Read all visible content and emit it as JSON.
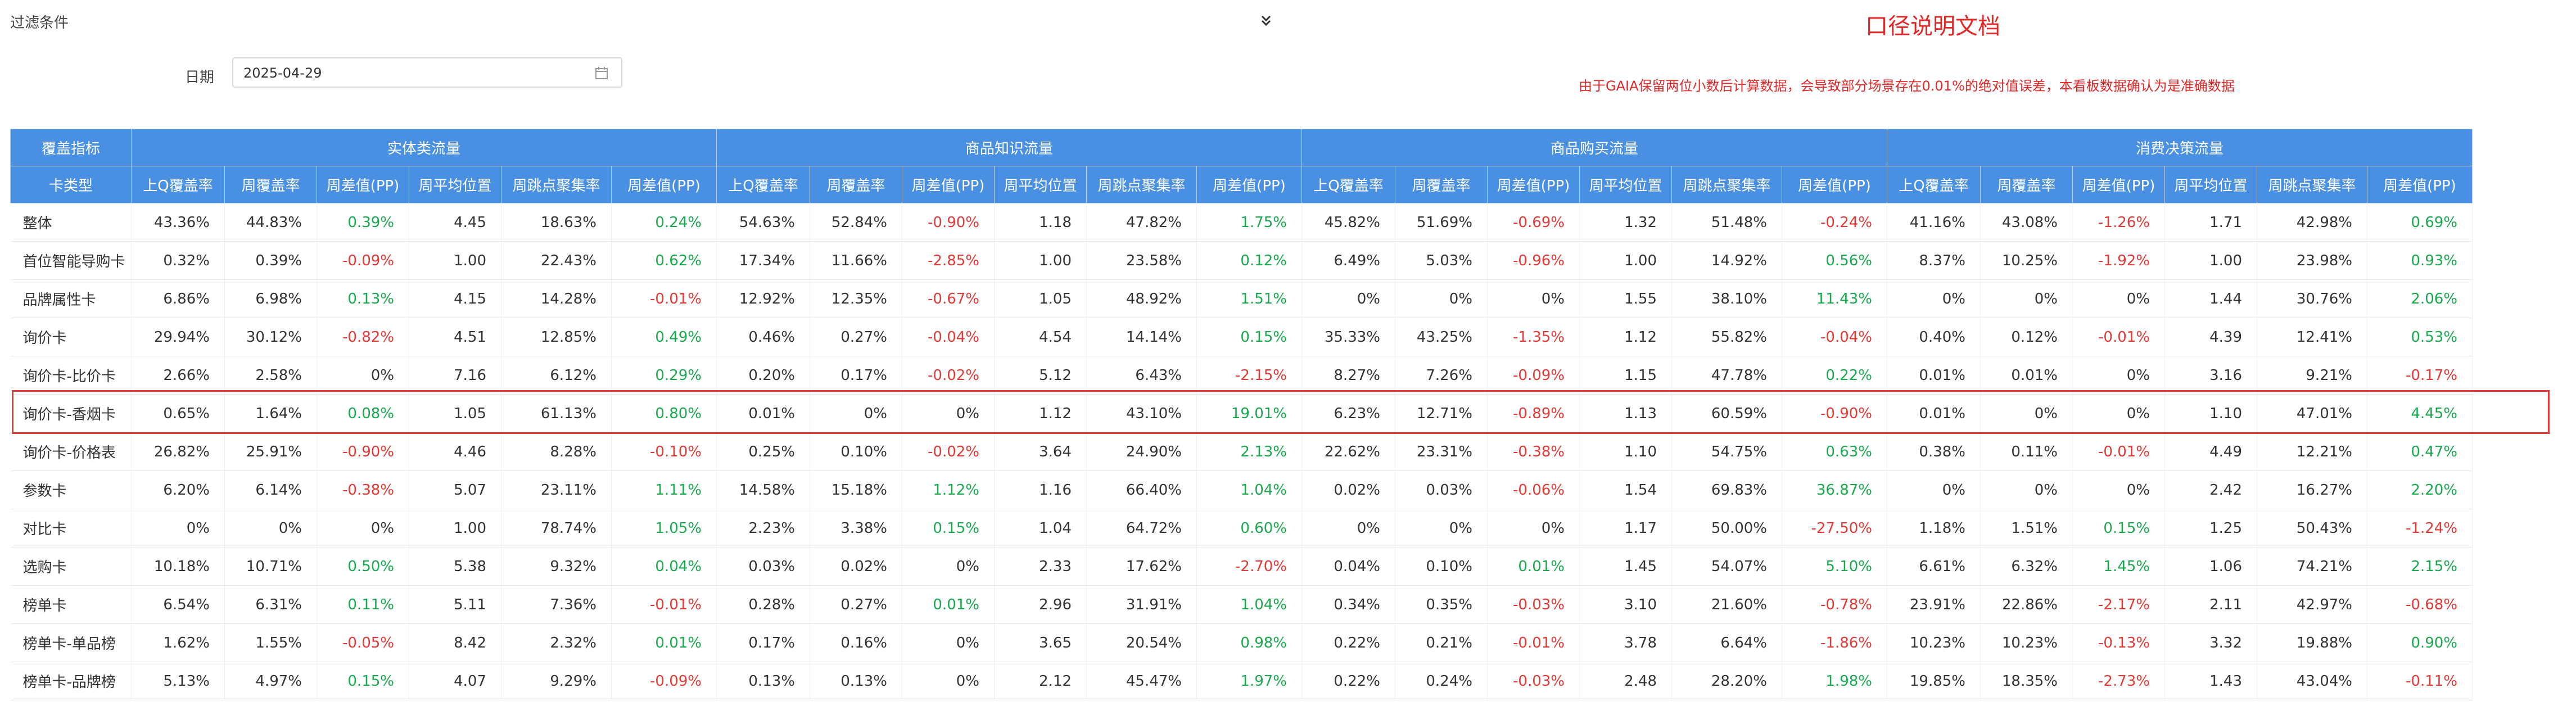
{
  "filter": {
    "title": "过滤条件",
    "date_label": "日期",
    "date_value": "2025-04-29",
    "doc_link": "口径说明文档",
    "notice": "由于GAIA保留两位小数后计算数据，会导致部分场景存在0.01%的绝对值误差，本看板数据确认为是准确数据"
  },
  "colors": {
    "header_bg": "#4a90e2",
    "positive": "#1aaa4e",
    "negative": "#e53935",
    "highlight": "#e53935"
  },
  "icons": {
    "collapse": "double-chevron-down-icon",
    "calendar": "calendar-icon"
  },
  "table": {
    "corner_top": "覆盖指标",
    "corner_bottom": "卡类型",
    "groups": [
      "实体类流量",
      "商品知识流量",
      "商品购买流量",
      "消费决策流量"
    ],
    "subheaders": [
      "上Q覆盖率",
      "周覆盖率",
      "周差值(PP)",
      "周平均位置",
      "周跳点聚集率",
      "周差值(PP)"
    ],
    "highlighted_row": "询价卡-香烟卡",
    "rows": [
      {
        "label": "整体",
        "values": [
          "43.36%",
          "44.83%",
          "0.39%",
          "4.45",
          "18.63%",
          "0.24%",
          "54.63%",
          "52.84%",
          "-0.90%",
          "1.18",
          "47.82%",
          "1.75%",
          "45.82%",
          "51.69%",
          "-0.69%",
          "1.32",
          "51.48%",
          "-0.24%",
          "41.16%",
          "43.08%",
          "-1.26%",
          "1.71",
          "42.98%",
          "0.69%"
        ]
      },
      {
        "label": "首位智能导购卡",
        "values": [
          "0.32%",
          "0.39%",
          "-0.09%",
          "1.00",
          "22.43%",
          "0.62%",
          "17.34%",
          "11.66%",
          "-2.85%",
          "1.00",
          "23.58%",
          "0.12%",
          "6.49%",
          "5.03%",
          "-0.96%",
          "1.00",
          "14.92%",
          "0.56%",
          "8.37%",
          "10.25%",
          "-1.92%",
          "1.00",
          "23.98%",
          "0.93%"
        ]
      },
      {
        "label": "品牌属性卡",
        "values": [
          "6.86%",
          "6.98%",
          "0.13%",
          "4.15",
          "14.28%",
          "-0.01%",
          "12.92%",
          "12.35%",
          "-0.67%",
          "1.05",
          "48.92%",
          "1.51%",
          "0%",
          "0%",
          "0%",
          "1.55",
          "38.10%",
          "11.43%",
          "0%",
          "0%",
          "0%",
          "1.44",
          "30.76%",
          "2.06%"
        ]
      },
      {
        "label": "询价卡",
        "values": [
          "29.94%",
          "30.12%",
          "-0.82%",
          "4.51",
          "12.85%",
          "0.49%",
          "0.46%",
          "0.27%",
          "-0.04%",
          "4.54",
          "14.14%",
          "0.15%",
          "35.33%",
          "43.25%",
          "-1.35%",
          "1.12",
          "55.82%",
          "-0.04%",
          "0.40%",
          "0.12%",
          "-0.01%",
          "4.39",
          "12.41%",
          "0.53%"
        ]
      },
      {
        "label": "询价卡-比价卡",
        "values": [
          "2.66%",
          "2.58%",
          "0%",
          "7.16",
          "6.12%",
          "0.29%",
          "0.20%",
          "0.17%",
          "-0.02%",
          "5.12",
          "6.43%",
          "-2.15%",
          "8.27%",
          "7.26%",
          "-0.09%",
          "1.15",
          "47.78%",
          "0.22%",
          "0.01%",
          "0.01%",
          "0%",
          "3.16",
          "9.21%",
          "-0.17%"
        ]
      },
      {
        "label": "询价卡-香烟卡",
        "values": [
          "0.65%",
          "1.64%",
          "0.08%",
          "1.05",
          "61.13%",
          "0.80%",
          "0.01%",
          "0%",
          "0%",
          "1.12",
          "43.10%",
          "19.01%",
          "6.23%",
          "12.71%",
          "-0.89%",
          "1.13",
          "60.59%",
          "-0.90%",
          "0.01%",
          "0%",
          "0%",
          "1.10",
          "47.01%",
          "4.45%"
        ]
      },
      {
        "label": "询价卡-价格表",
        "values": [
          "26.82%",
          "25.91%",
          "-0.90%",
          "4.46",
          "8.28%",
          "-0.10%",
          "0.25%",
          "0.10%",
          "-0.02%",
          "3.64",
          "24.90%",
          "2.13%",
          "22.62%",
          "23.31%",
          "-0.38%",
          "1.10",
          "54.75%",
          "0.63%",
          "0.38%",
          "0.11%",
          "-0.01%",
          "4.49",
          "12.21%",
          "0.47%"
        ]
      },
      {
        "label": "参数卡",
        "values": [
          "6.20%",
          "6.14%",
          "-0.38%",
          "5.07",
          "23.11%",
          "1.11%",
          "14.58%",
          "15.18%",
          "1.12%",
          "1.16",
          "66.40%",
          "1.04%",
          "0.02%",
          "0.03%",
          "-0.06%",
          "1.54",
          "69.83%",
          "36.87%",
          "0%",
          "0%",
          "0%",
          "2.42",
          "16.27%",
          "2.20%"
        ]
      },
      {
        "label": "对比卡",
        "values": [
          "0%",
          "0%",
          "0%",
          "1.00",
          "78.74%",
          "1.05%",
          "2.23%",
          "3.38%",
          "0.15%",
          "1.04",
          "64.72%",
          "0.60%",
          "0%",
          "0%",
          "0%",
          "1.17",
          "50.00%",
          "-27.50%",
          "1.18%",
          "1.51%",
          "0.15%",
          "1.25",
          "50.43%",
          "-1.24%"
        ]
      },
      {
        "label": "选购卡",
        "values": [
          "10.18%",
          "10.71%",
          "0.50%",
          "5.38",
          "9.32%",
          "0.04%",
          "0.03%",
          "0.02%",
          "0%",
          "2.33",
          "17.62%",
          "-2.70%",
          "0.04%",
          "0.10%",
          "0.01%",
          "1.45",
          "54.07%",
          "5.10%",
          "6.61%",
          "6.32%",
          "1.45%",
          "1.06",
          "74.21%",
          "2.15%"
        ]
      },
      {
        "label": "榜单卡",
        "values": [
          "6.54%",
          "6.31%",
          "0.11%",
          "5.11",
          "7.36%",
          "-0.01%",
          "0.28%",
          "0.27%",
          "0.01%",
          "2.96",
          "31.91%",
          "1.04%",
          "0.34%",
          "0.35%",
          "-0.03%",
          "3.10",
          "21.60%",
          "-0.78%",
          "23.91%",
          "22.86%",
          "-2.17%",
          "2.11",
          "42.97%",
          "-0.68%"
        ]
      },
      {
        "label": "榜单卡-单品榜",
        "values": [
          "1.62%",
          "1.55%",
          "-0.05%",
          "8.42",
          "2.32%",
          "0.01%",
          "0.17%",
          "0.16%",
          "0%",
          "3.65",
          "20.54%",
          "0.98%",
          "0.22%",
          "0.21%",
          "-0.01%",
          "3.78",
          "6.64%",
          "-1.86%",
          "10.23%",
          "10.23%",
          "-0.13%",
          "3.32",
          "19.88%",
          "0.90%"
        ]
      },
      {
        "label": "榜单卡-品牌榜",
        "values": [
          "5.13%",
          "4.97%",
          "0.15%",
          "4.07",
          "9.29%",
          "-0.09%",
          "0.13%",
          "0.13%",
          "0%",
          "2.12",
          "45.47%",
          "1.97%",
          "0.22%",
          "0.24%",
          "-0.03%",
          "2.48",
          "28.20%",
          "1.98%",
          "19.85%",
          "18.35%",
          "-2.73%",
          "1.43",
          "43.04%",
          "-0.11%"
        ]
      }
    ]
  }
}
